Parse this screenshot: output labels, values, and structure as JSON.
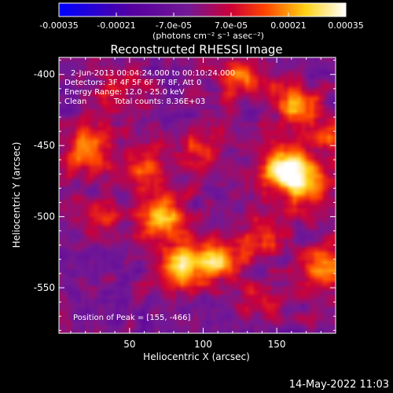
{
  "chart_data": {
    "type": "heatmap",
    "title": "Reconstructed RHESSI Image",
    "xlabel": "Heliocentric X (arcsec)",
    "ylabel": "Heliocentric Y (arcsec)",
    "xlim": [
      2,
      190
    ],
    "ylim": [
      -582,
      -388
    ],
    "x_ticks": [
      50,
      100,
      150
    ],
    "y_ticks": [
      -400,
      -450,
      -500,
      -550
    ],
    "colorbar": {
      "range": [
        -0.00035,
        0.00035
      ],
      "ticks": [
        "-0.00035",
        "-0.00021",
        "-7.0e-05",
        "7.0e-05",
        "0.00021",
        "0.00035"
      ],
      "unit_label": "(photons cm⁻² s⁻¹ asec⁻²)",
      "colormap": "blue-purple-red-yellow-white"
    },
    "annotations": {
      "time_range": "2-Jun-2013 00:04:24.000 to 00:10:24.000",
      "detectors": "Detectors: 3F 4F 5F 6F 7F 8F, Att 0",
      "energy": "Energy Range: 12.0 - 25.0 keV",
      "method": "Clean",
      "counts": "Total counts: 8.36E+03",
      "peak": "Position of Peak = [155, -466]"
    },
    "peak": {
      "x": 155,
      "y": -466
    },
    "sources": [
      {
        "x": 155,
        "y": -466,
        "value": 0.00035
      },
      {
        "x": 170,
        "y": -480,
        "value": 0.00029
      },
      {
        "x": 160,
        "y": -420,
        "value": 0.00022
      },
      {
        "x": 22,
        "y": -450,
        "value": 0.00026
      },
      {
        "x": 72,
        "y": -500,
        "value": 0.0003
      },
      {
        "x": 110,
        "y": -530,
        "value": 0.00027
      },
      {
        "x": 85,
        "y": -535,
        "value": 0.00028
      },
      {
        "x": 180,
        "y": -535,
        "value": 0.00024
      },
      {
        "x": 60,
        "y": -465,
        "value": 0.0002
      },
      {
        "x": 125,
        "y": -402,
        "value": 0.00019
      },
      {
        "x": 100,
        "y": -455,
        "value": 0.00014
      },
      {
        "x": 40,
        "y": -415,
        "value": 0.00012
      },
      {
        "x": 30,
        "y": -500,
        "value": 0.00012
      },
      {
        "x": 140,
        "y": -515,
        "value": 0.00016
      },
      {
        "x": 185,
        "y": -440,
        "value": 0.00018
      },
      {
        "x": 140,
        "y": -560,
        "value": 0.0001
      }
    ]
  },
  "footer": {
    "date": "14-May-2022 11:03"
  }
}
